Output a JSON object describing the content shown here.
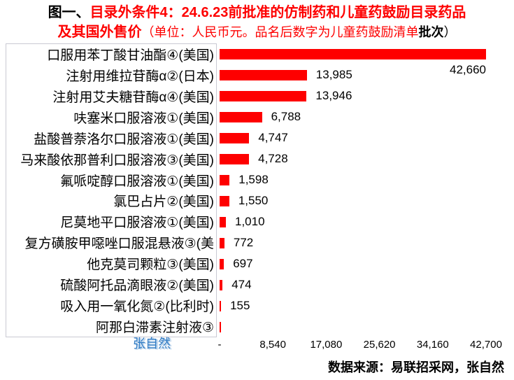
{
  "title": {
    "prefix": "图一、",
    "main": "目录外条件4：24.6.23前批准的仿制药和儿童药鼓励目录药品",
    "sub_bold_red": "及其国外售价",
    "sub_red": "（单位：人民币元。品名后数字为儿童药鼓励清单",
    "sub_bold_black": "批次",
    "sub_close": "）"
  },
  "chart_data": {
    "type": "bar",
    "orientation": "horizontal",
    "bar_color": "#fe0000",
    "xlim": [
      0,
      42700
    ],
    "x_ticks": [
      "-",
      "8,540",
      "17,080",
      "25,620",
      "34,160",
      "42,700"
    ],
    "categories": [
      "口服用苯丁酸甘油酯④(美国)",
      "注射用维拉苷酶α②(日本)",
      "注射用艾夫糖苷酶α④(美国)",
      "呋塞米口服溶液①(美国)",
      "盐酸普萘洛尔口服溶液①(美国)",
      "马来酸依那普利口服溶液③(美国)",
      "氟哌啶醇口服溶液①(美国)",
      "氯巴占片②(美国)",
      "尼莫地平口服溶液①(美国)",
      "复方磺胺甲噁唑口服混悬液③(美",
      "他克莫司颗粒③(美国)",
      "硫酸阿托品滴眼液②(美国)",
      "吸入用一氧化氮②(比利时)",
      "阿那白滞素注射液③"
    ],
    "values": [
      42660,
      13985,
      13946,
      6788,
      4747,
      4728,
      1598,
      1550,
      1010,
      772,
      697,
      474,
      155,
      null
    ],
    "value_labels": [
      "42,660",
      "13,985",
      "13,946",
      "6,788",
      "4,747",
      "4,728",
      "1,598",
      "1,550",
      "1,010",
      "772",
      "697",
      "474",
      "155",
      ""
    ],
    "legend": null,
    "grid": false
  },
  "watermark": "张自然",
  "source": "数据来源：易联招采网，张自然"
}
